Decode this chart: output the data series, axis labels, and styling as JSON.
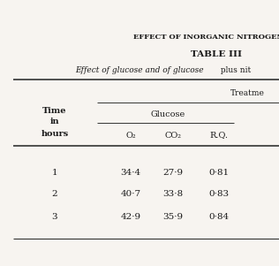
{
  "page_title": "EFFECT OF INORGANIC NITROGEN ON",
  "table_title": "TABLE III",
  "subtitle_italic": "Effect of glucose and of glucose",
  "subtitle_normal": " plus nit",
  "treatment_label": "Treatme",
  "group_label": "Glucose",
  "col_headers": [
    "O₂",
    "CO₂",
    "R.Q."
  ],
  "row_label_lines": [
    "Time",
    "in",
    "hours"
  ],
  "rows": [
    [
      "1",
      "34·4",
      "27·9",
      "0·81"
    ],
    [
      "2",
      "40·7",
      "33·8",
      "0·83"
    ],
    [
      "3",
      "42·9",
      "35·9",
      "0·84"
    ]
  ],
  "bg_color": "#f7f4f0",
  "text_color": "#1a1a1a",
  "line_color": "#333333"
}
